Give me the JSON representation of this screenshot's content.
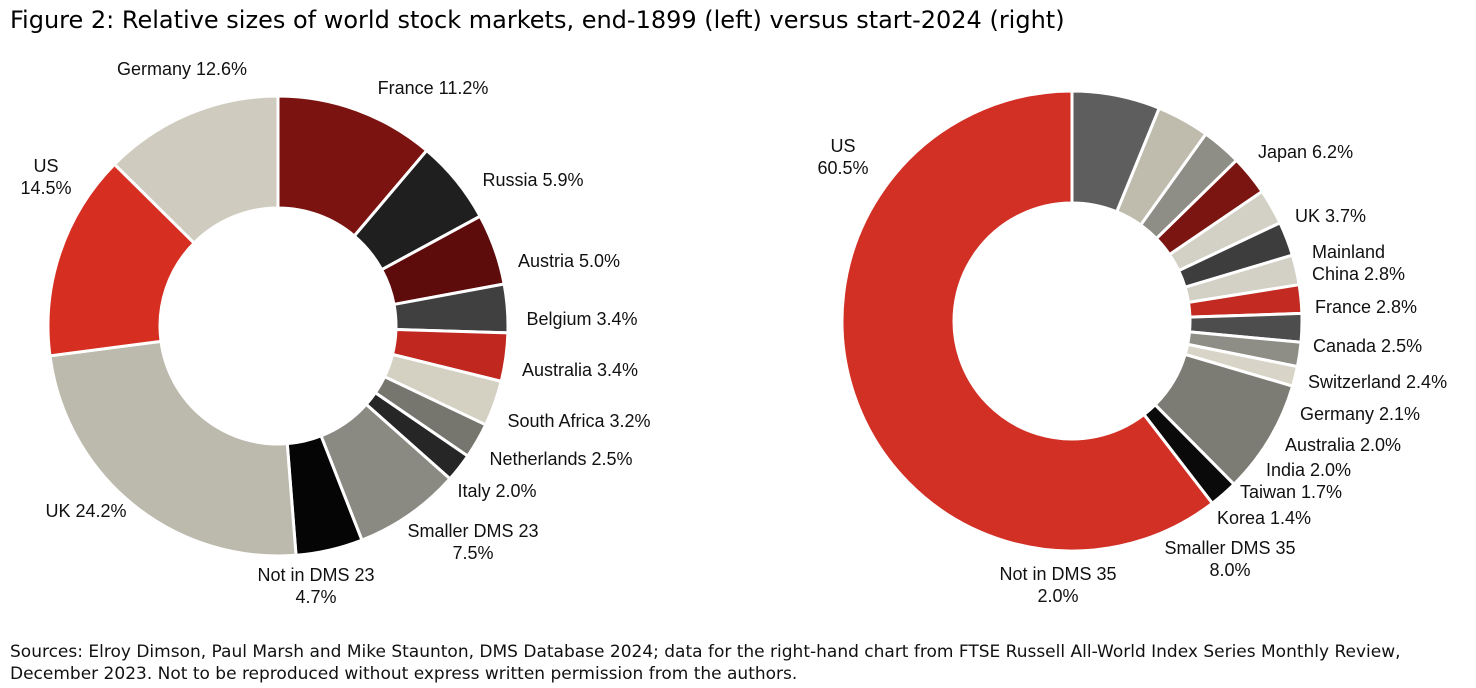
{
  "title": "Figure 2: Relative sizes of world stock markets, end-1899 (left) versus start-2024 (right)",
  "source": "Sources: Elroy Dimson, Paul Marsh and Mike Staunton, DMS Database 2024; data for the right-hand chart from FTSE Russell All-World Index Series Monthly Review, December 2023. Not to be reproduced without express written permission from the authors.",
  "chart_data": [
    {
      "type": "pie",
      "name": "end-1899",
      "slices": [
        {
          "label": "France",
          "value": 11.2,
          "text": [
            "France 11.2%"
          ],
          "color": "#7b1410"
        },
        {
          "label": "Russia",
          "value": 5.9,
          "text": [
            "Russia 5.9%"
          ],
          "color": "#1f1f1f"
        },
        {
          "label": "Austria",
          "value": 5.0,
          "text": [
            "Austria 5.0%"
          ],
          "color": "#5e0b0b"
        },
        {
          "label": "Belgium",
          "value": 3.4,
          "text": [
            "Belgium 3.4%"
          ],
          "color": "#404040"
        },
        {
          "label": "Australia",
          "value": 3.4,
          "text": [
            "Australia 3.4%"
          ],
          "color": "#c0271e"
        },
        {
          "label": "South Africa",
          "value": 3.2,
          "text": [
            "South Africa 3.2%"
          ],
          "color": "#d4d1c2"
        },
        {
          "label": "Netherlands",
          "value": 2.5,
          "text": [
            "Netherlands 2.5%"
          ],
          "color": "#77766e"
        },
        {
          "label": "Italy",
          "value": 2.0,
          "text": [
            "Italy 2.0%"
          ],
          "color": "#262626"
        },
        {
          "label": "Smaller DMS 23",
          "value": 7.5,
          "text": [
            "Smaller DMS 23",
            "7.5%"
          ],
          "color": "#8b8a82"
        },
        {
          "label": "Not in DMS 23",
          "value": 4.7,
          "text": [
            "Not in DMS 23",
            "4.7%"
          ],
          "color": "#050505"
        },
        {
          "label": "UK",
          "value": 24.2,
          "text": [
            "UK 24.2%"
          ],
          "color": "#bcb9ad"
        },
        {
          "label": "US",
          "value": 14.5,
          "text": [
            "US",
            "14.5%"
          ],
          "color": "#d72e22"
        },
        {
          "label": "Germany",
          "value": 12.6,
          "text": [
            "Germany 12.6%"
          ],
          "color": "#cfccbf"
        }
      ]
    },
    {
      "type": "pie",
      "name": "start-2024",
      "slices": [
        {
          "label": "Japan",
          "value": 6.2,
          "text": [
            "Japan 6.2%"
          ],
          "color": "#5e5e5e"
        },
        {
          "label": "UK",
          "value": 3.7,
          "text": [
            "UK 3.7%"
          ],
          "color": "#bfbcae"
        },
        {
          "label": "Mainland China",
          "value": 2.8,
          "text": [
            "Mainland",
            "China 2.8%"
          ],
          "color": "#8e8d86"
        },
        {
          "label": "France",
          "value": 2.8,
          "text": [
            "France 2.8%"
          ],
          "color": "#7a1511"
        },
        {
          "label": "Canada",
          "value": 2.5,
          "text": [
            "Canada 2.5%"
          ],
          "color": "#d3d0c5"
        },
        {
          "label": "Switzerland",
          "value": 2.4,
          "text": [
            "Switzerland 2.4%"
          ],
          "color": "#3d3d3d"
        },
        {
          "label": "Germany",
          "value": 2.1,
          "text": [
            "Germany 2.1%"
          ],
          "color": "#d3d0c5"
        },
        {
          "label": "Australia",
          "value": 2.0,
          "text": [
            "Australia 2.0%"
          ],
          "color": "#c32a21"
        },
        {
          "label": "India",
          "value": 2.0,
          "text": [
            "India 2.0%"
          ],
          "color": "#4d4d4d"
        },
        {
          "label": "Taiwan",
          "value": 1.7,
          "text": [
            "Taiwan 1.7%"
          ],
          "color": "#8e8d86"
        },
        {
          "label": "Korea",
          "value": 1.4,
          "text": [
            "Korea 1.4%"
          ],
          "color": "#d8d5c8"
        },
        {
          "label": "Smaller DMS 35",
          "value": 8.0,
          "text": [
            "Smaller DMS 35",
            "8.0%"
          ],
          "color": "#7d7c74"
        },
        {
          "label": "Not in DMS 35",
          "value": 2.0,
          "text": [
            "Not in DMS 35",
            "2.0%"
          ],
          "color": "#0a0a0a"
        },
        {
          "label": "US",
          "value": 60.5,
          "text": [
            "US",
            "60.5%"
          ],
          "color": "#d22f25"
        }
      ]
    }
  ]
}
